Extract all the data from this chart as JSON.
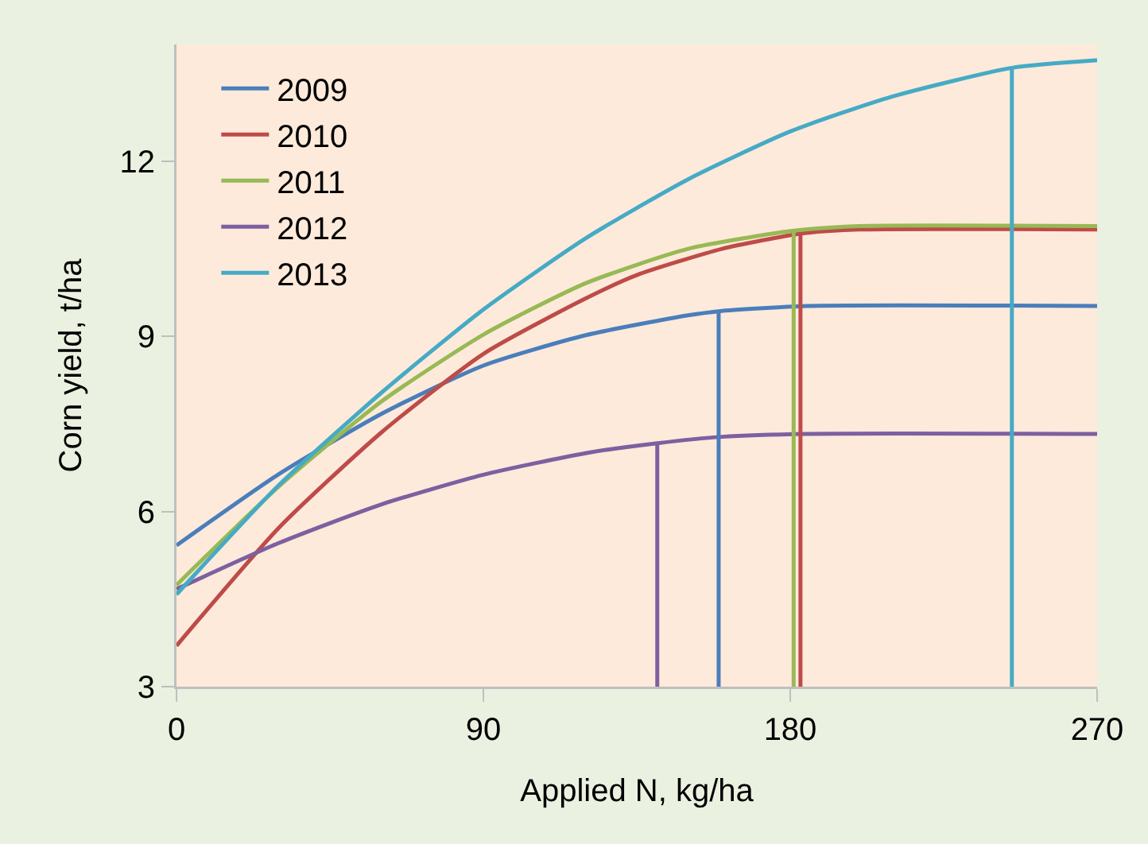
{
  "chart_data": {
    "type": "line",
    "xlabel": "Applied N, kg/ha",
    "ylabel": "Corn yield, t/ha",
    "xlim": [
      0,
      270
    ],
    "xticks": [
      0,
      90,
      180,
      270
    ],
    "ylim": [
      3,
      14
    ],
    "yticks": [
      3,
      6,
      9,
      12
    ],
    "grid": false,
    "legend": "top left",
    "marker": "none",
    "line_style": "solid",
    "series": [
      {
        "name": "2009",
        "color": "#4a7ebb",
        "x": [
          0,
          30,
          60,
          90,
          120,
          150,
          159,
          185,
          270
        ],
        "values": [
          5.42,
          6.64,
          7.67,
          8.5,
          9.02,
          9.36,
          9.43,
          9.52,
          9.52
        ]
      },
      {
        "name": "2010",
        "color": "#be4b48",
        "x": [
          0,
          30,
          60,
          90,
          120,
          135,
          160,
          183,
          200,
          270
        ],
        "values": [
          3.7,
          5.72,
          7.35,
          8.7,
          9.65,
          10.05,
          10.5,
          10.76,
          10.83,
          10.83
        ]
      },
      {
        "name": "2011",
        "color": "#98b954",
        "x": [
          0,
          30,
          60,
          90,
          120,
          150,
          181,
          200,
          270
        ],
        "values": [
          4.74,
          6.43,
          7.88,
          9.03,
          9.91,
          10.5,
          10.81,
          10.89,
          10.89
        ]
      },
      {
        "name": "2012",
        "color": "#7d60a0",
        "x": [
          0,
          30,
          60,
          90,
          120,
          141,
          160,
          185,
          270
        ],
        "values": [
          4.67,
          5.46,
          6.12,
          6.63,
          7.0,
          7.17,
          7.28,
          7.33,
          7.33
        ]
      },
      {
        "name": "2013",
        "color": "#46aac5",
        "x": [
          0,
          30,
          60,
          90,
          120,
          150,
          180,
          210,
          245,
          270
        ],
        "values": [
          4.58,
          6.45,
          8.03,
          9.46,
          10.68,
          11.69,
          12.51,
          13.11,
          13.6,
          13.73
        ]
      },
      {
        "color": "#7d60a0",
        "x": [
          141,
          141
        ],
        "values": [
          3,
          7.17
        ]
      },
      {
        "color": "#4a7ebb",
        "x": [
          159,
          159
        ],
        "values": [
          3,
          9.43
        ]
      },
      {
        "color": "#98b954",
        "x": [
          181,
          181
        ],
        "values": [
          3,
          10.81
        ]
      },
      {
        "color": "#be4b48",
        "x": [
          183,
          183
        ],
        "values": [
          3,
          10.76
        ]
      },
      {
        "color": "#46aac5",
        "x": [
          245,
          245
        ],
        "values": [
          3,
          13.6
        ]
      }
    ]
  }
}
